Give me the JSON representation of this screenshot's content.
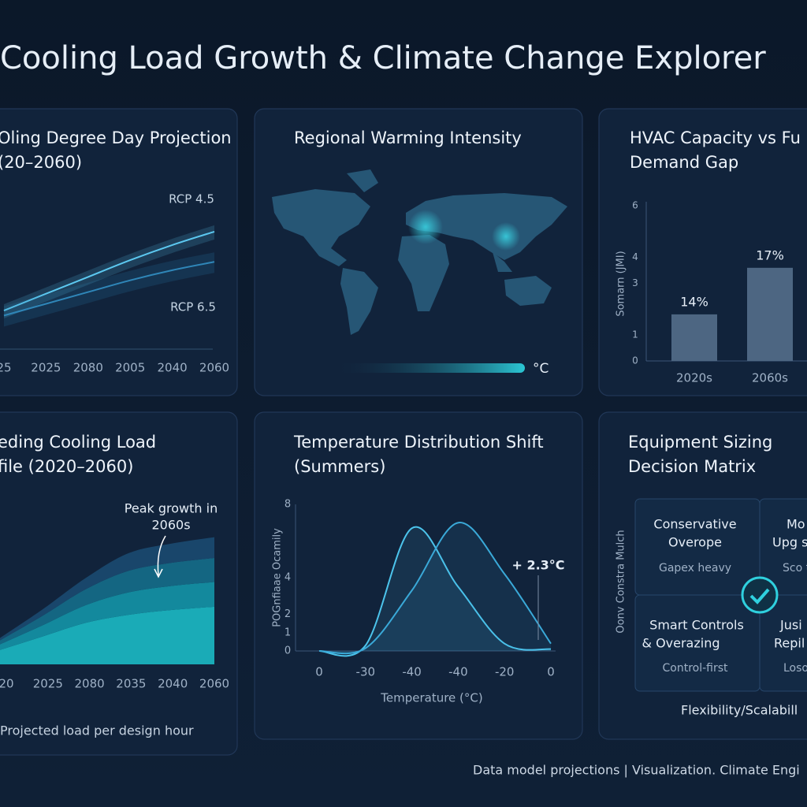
{
  "header": {
    "title": "Cooling Load Growth & Climate Change Explorer"
  },
  "footer": {
    "text": "Data model projections  |  Visualization. Climate Engi"
  },
  "map": {
    "title": "Regional Warming Intensity",
    "legend_unit": "°C"
  },
  "matrix": {
    "title": [
      "Equipment Sizing",
      "Decision Matrix"
    ],
    "y_label": "Oonv Constra Mulch",
    "x_label": "Flexibility/Scalabill",
    "cells": [
      {
        "lines": [
          "Conservative",
          "Overope"
        ],
        "note": "Gapex heavy"
      },
      {
        "lines": [
          "Mo",
          "Upg s"
        ],
        "note": "Sco tric"
      },
      {
        "lines": [
          "Smart Controls",
          "& Overazing"
        ],
        "note": "Control-first"
      },
      {
        "lines": [
          "Jusi",
          "Repil"
        ],
        "note": "Loso stor"
      }
    ]
  },
  "chart_data": [
    {
      "type": "line",
      "title": [
        "Oling Degree Day Projection",
        "(20–2060)"
      ],
      "categories": [
        "25",
        "2025",
        "2080",
        "2005",
        "2040",
        "2060"
      ],
      "ylim": [
        0,
        100
      ],
      "series": [
        {
          "name": "RCP 4.5",
          "color": "#5cc8f0",
          "values": [
            23,
            33,
            43,
            53,
            62,
            70
          ]
        },
        {
          "name": "RCP 6.5",
          "color": "#2f86b8",
          "values": [
            20,
            27,
            34,
            41,
            47,
            52
          ]
        }
      ]
    },
    {
      "type": "bar",
      "title": [
        "HVAC Capacity vs Fu",
        "Demand Gap"
      ],
      "categories": [
        "2020s",
        "2060s"
      ],
      "values": [
        1.8,
        3.6
      ],
      "color": "#4d6682",
      "annotations": [
        "14%",
        "17%"
      ],
      "y_label": "Somarn (JMI)",
      "ylim": [
        0,
        6
      ],
      "yticks": [
        6,
        4,
        3,
        1,
        0
      ]
    },
    {
      "type": "area",
      "title": [
        "eding Cooling Load",
        "file (2020–2060)"
      ],
      "categories": [
        "20",
        "2025",
        "2080",
        "2035",
        "2040",
        "2060"
      ],
      "ylim": [
        0,
        200
      ],
      "annotation": [
        "Peak growth in",
        "2060s"
      ],
      "note": "Projected load per design hour",
      "series": [
        {
          "color": "#1bb7c2",
          "values": [
            18,
            35,
            52,
            62,
            68,
            72
          ]
        },
        {
          "color": "#1493a6",
          "values": [
            7,
            14,
            22,
            28,
            30,
            31
          ]
        },
        {
          "color": "#156d89",
          "values": [
            5,
            12,
            20,
            27,
            29,
            30
          ]
        },
        {
          "color": "#1a4a70",
          "values": [
            3,
            8,
            14,
            22,
            24,
            26
          ]
        }
      ]
    },
    {
      "type": "curve",
      "title": [
        "Temperature Distribution Shift",
        "(Summers)"
      ],
      "categories": [
        "0",
        "-30",
        "-40",
        "-40",
        "-20",
        "0"
      ],
      "x_label": "Temperature (°C)",
      "y_label": "POGnfiaae Ocamily",
      "annotation": "+ 2.3°C",
      "ylim": [
        0,
        8
      ],
      "yticks": [
        8,
        4,
        2,
        1,
        0
      ],
      "series": [
        {
          "color": "#4cc4ec",
          "values": [
            0,
            0.3,
            6.7,
            3.5,
            0.4,
            0.1
          ]
        },
        {
          "color": "#3aa9d8",
          "values": [
            0,
            0.15,
            3.3,
            7,
            4.2,
            0.4
          ]
        }
      ]
    }
  ]
}
